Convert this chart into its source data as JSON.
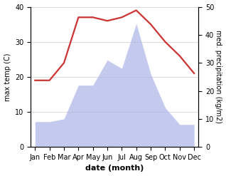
{
  "months": [
    "Jan",
    "Feb",
    "Mar",
    "Apr",
    "May",
    "Jun",
    "Jul",
    "Aug",
    "Sep",
    "Oct",
    "Nov",
    "Dec"
  ],
  "temperature": [
    19,
    19,
    24,
    37,
    37,
    36,
    37,
    39,
    35,
    30,
    26,
    21
  ],
  "precipitation": [
    9,
    9,
    10,
    22,
    22,
    31,
    28,
    44,
    26,
    14,
    8,
    8
  ],
  "temp_color": "#cc3333",
  "precip_color": "#aab4e8",
  "temp_ylim": [
    0,
    40
  ],
  "precip_ylim": [
    0,
    50
  ],
  "xlabel": "date (month)",
  "ylabel_left": "max temp (C)",
  "ylabel_right": "med. precipitation (kg/m2)",
  "bg_color": "#ffffff",
  "label_fontsize": 8,
  "tick_fontsize": 7
}
